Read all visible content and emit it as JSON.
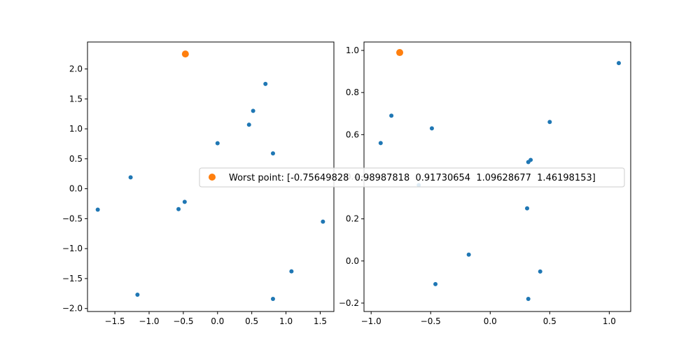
{
  "chart_data": [
    {
      "type": "scatter",
      "title": "",
      "xlabel": "",
      "ylabel": "",
      "xlim": [
        -1.9,
        1.7
      ],
      "ylim": [
        -2.05,
        2.45
      ],
      "xticks": [
        -1.5,
        -1.0,
        -0.5,
        0.0,
        0.5,
        1.0,
        1.5
      ],
      "xtick_labels": [
        "−1.5",
        "−1.0",
        "−0.5",
        "0.0",
        "0.5",
        "1.0",
        "1.5"
      ],
      "yticks": [
        -2.0,
        -1.5,
        -1.0,
        -0.5,
        0.0,
        0.5,
        1.0,
        1.5,
        2.0
      ],
      "ytick_labels": [
        "−2.0",
        "−1.5",
        "−1.0",
        "−0.5",
        "0.0",
        "0.5",
        "1.0",
        "1.5",
        "2.0"
      ],
      "series": [
        {
          "color": "#1f77b4",
          "points": [
            [
              -1.75,
              -0.35
            ],
            [
              -1.27,
              0.19
            ],
            [
              -1.17,
              -1.77
            ],
            [
              -0.57,
              -0.34
            ],
            [
              -0.48,
              -0.22
            ],
            [
              0.0,
              0.76
            ],
            [
              0.46,
              1.07
            ],
            [
              0.52,
              1.3
            ],
            [
              0.7,
              1.75
            ],
            [
              0.81,
              0.59
            ],
            [
              0.81,
              -1.84
            ],
            [
              1.08,
              -1.38
            ],
            [
              1.54,
              -0.55
            ]
          ]
        },
        {
          "name": "Worst point",
          "color": "#ff7f0e",
          "points": [
            [
              -0.47,
              2.25
            ]
          ]
        }
      ]
    },
    {
      "type": "scatter",
      "title": "",
      "xlabel": "",
      "ylabel": "",
      "xlim": [
        -1.06,
        1.18
      ],
      "ylim": [
        -0.24,
        1.04
      ],
      "xticks": [
        -1.0,
        -0.5,
        0.0,
        0.5,
        1.0
      ],
      "xtick_labels": [
        "−1.0",
        "−0.5",
        "0.0",
        "0.5",
        "1.0"
      ],
      "yticks": [
        -0.2,
        0.0,
        0.2,
        0.4,
        0.6,
        0.8,
        1.0
      ],
      "ytick_labels": [
        "−0.2",
        "0.0",
        "0.2",
        "0.4",
        "0.6",
        "0.8",
        "1.0"
      ],
      "series": [
        {
          "color": "#1f77b4",
          "points": [
            [
              -0.92,
              0.56
            ],
            [
              -0.83,
              0.69
            ],
            [
              -0.49,
              0.63
            ],
            [
              -0.6,
              0.36
            ],
            [
              0.32,
              0.47
            ],
            [
              0.34,
              0.48
            ],
            [
              0.5,
              0.66
            ],
            [
              1.08,
              0.94
            ],
            [
              0.31,
              0.25
            ],
            [
              -0.18,
              0.03
            ],
            [
              -0.46,
              -0.11
            ],
            [
              0.42,
              -0.05
            ],
            [
              0.32,
              -0.18
            ]
          ]
        },
        {
          "name": "Worst point",
          "color": "#ff7f0e",
          "points": [
            [
              -0.76,
              0.99
            ]
          ]
        }
      ]
    }
  ],
  "legend": {
    "label": "Worst point: [-0.75649828  0.98987818  0.91730654  1.09628677  1.46198153]",
    "marker_color": "#ff7f0e",
    "placement": "center"
  }
}
